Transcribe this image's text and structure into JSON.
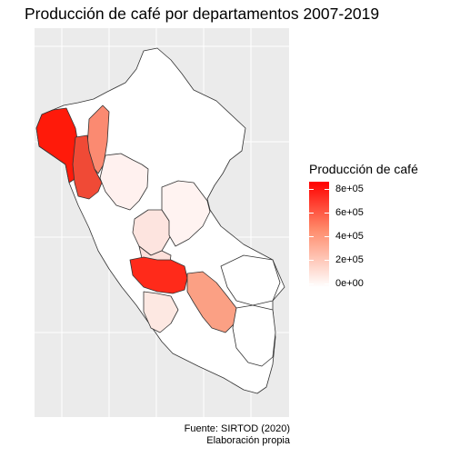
{
  "title": "Producción de café por departamentos 2007-2019",
  "legend": {
    "title": "Producción de café",
    "labels": [
      "8e+05",
      "6e+05",
      "4e+05",
      "2e+05",
      "0e+00"
    ],
    "low_color": "#ffffff",
    "high_color": "#ff0000"
  },
  "caption": {
    "line1": "Fuente: SIRTOD (2020)",
    "line2": "Elaboración propia"
  },
  "regions": [
    {
      "id": "peru-base",
      "color": "#ffffff"
    },
    {
      "id": "cajamarca",
      "color": "#f04a36"
    },
    {
      "id": "amazonas",
      "color": "#fb8a71"
    },
    {
      "id": "san-martin",
      "color": "#ff1a0a"
    },
    {
      "id": "piura",
      "color": "#fff1ef"
    },
    {
      "id": "huanuco",
      "color": "#fde4df"
    },
    {
      "id": "pasco",
      "color": "#fde0da"
    },
    {
      "id": "ucayali",
      "color": "#fff3f1"
    },
    {
      "id": "junin",
      "color": "#ff2a1a"
    },
    {
      "id": "cusco",
      "color": "#fba084"
    },
    {
      "id": "puno",
      "color": "#fde8e2"
    },
    {
      "id": "ayacucho",
      "color": "#ffffff"
    },
    {
      "id": "madre-de-dios",
      "color": "#ffffff"
    }
  ]
}
